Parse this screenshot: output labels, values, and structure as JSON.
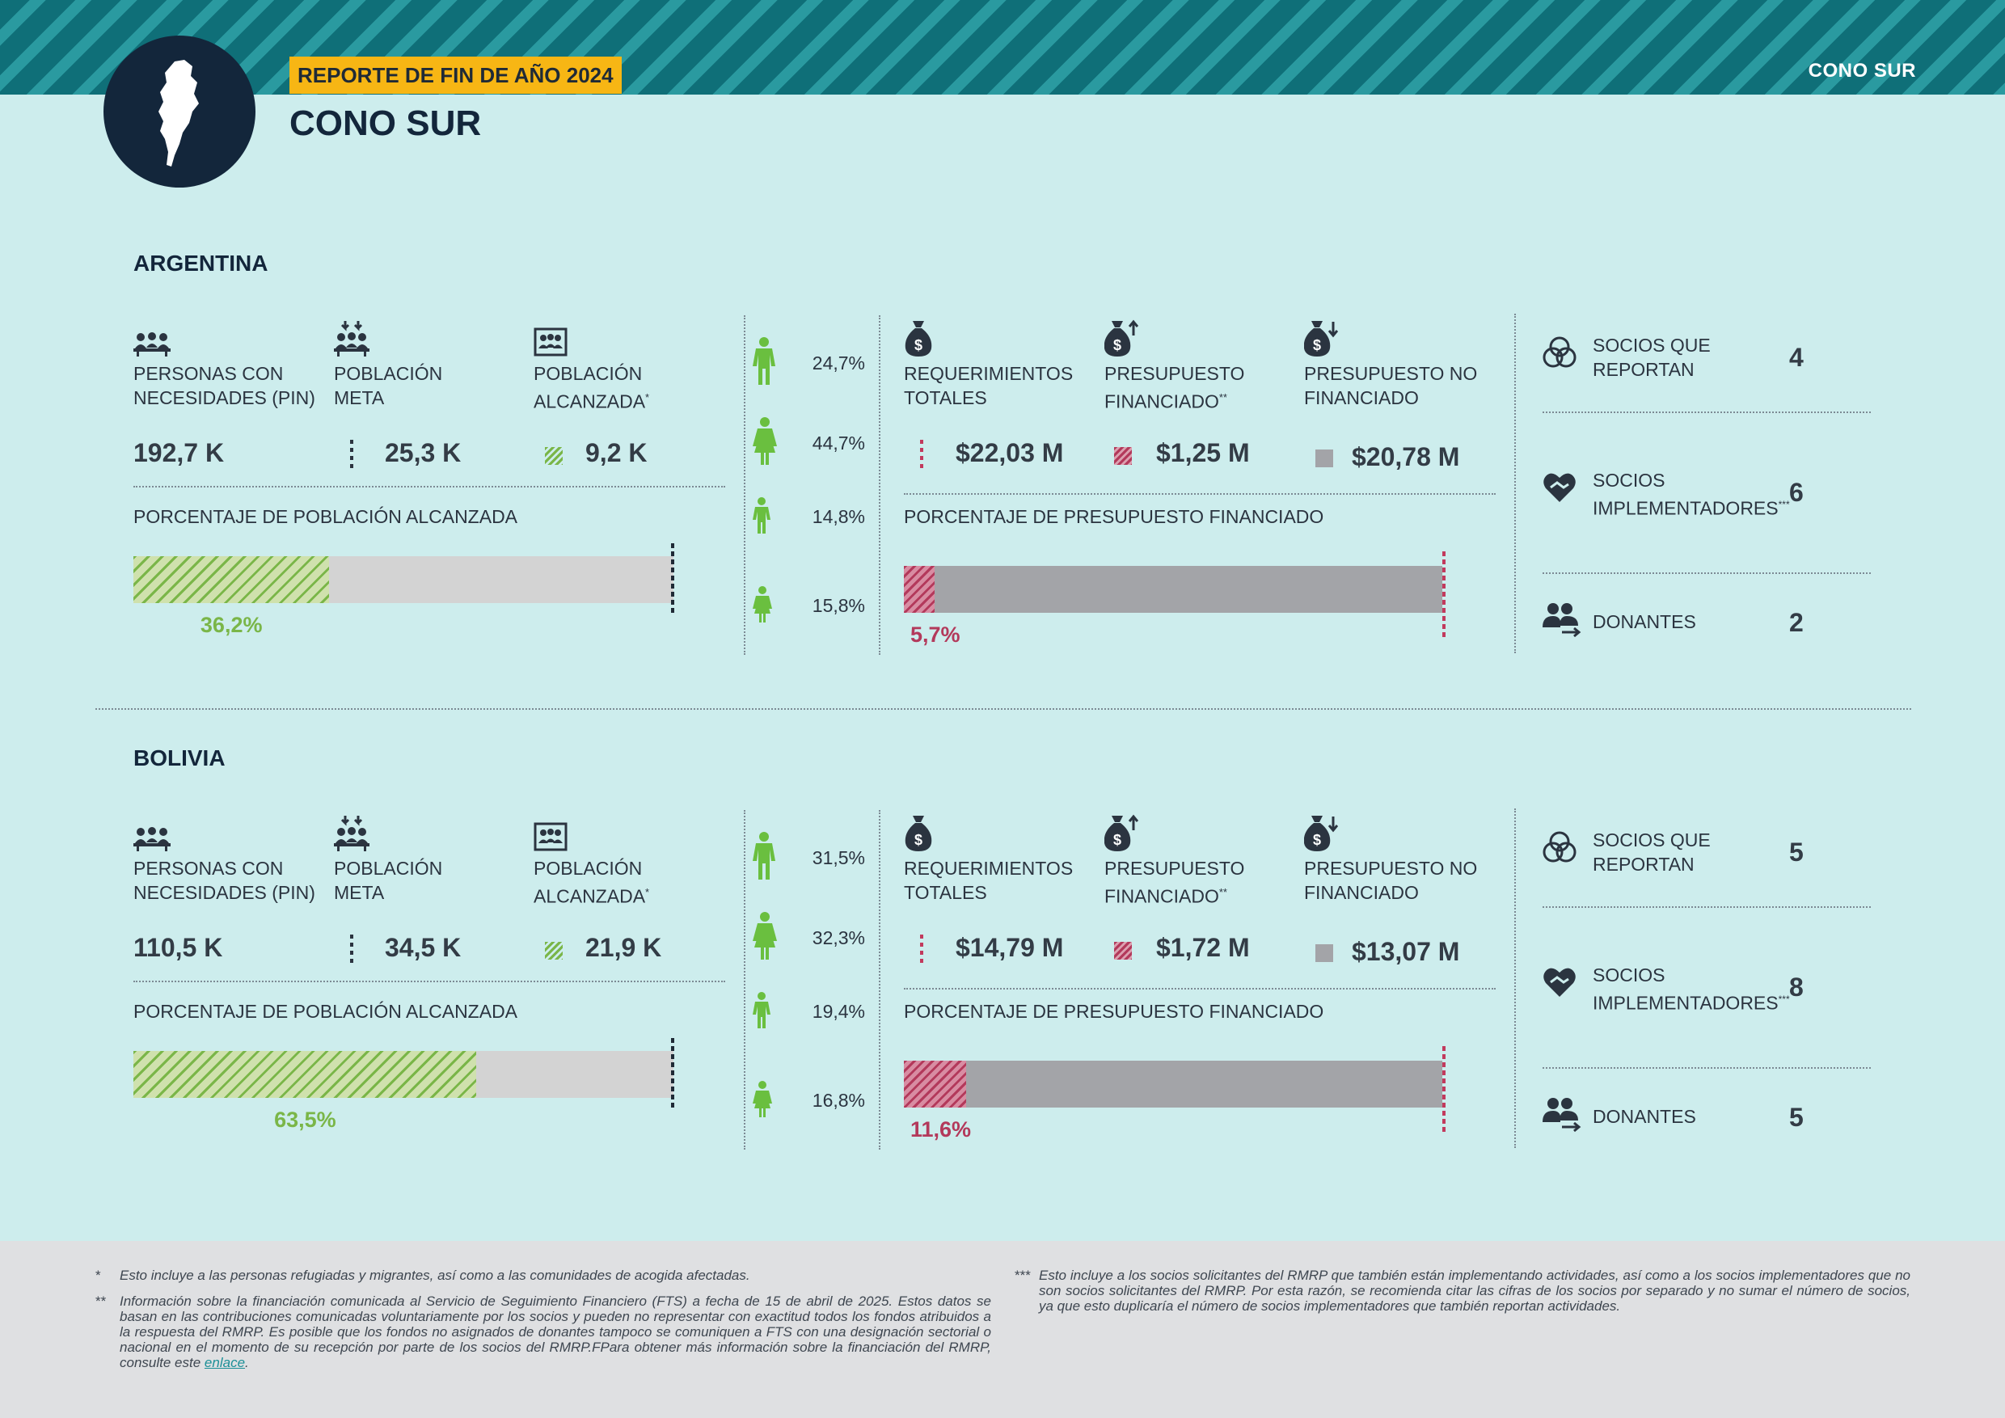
{
  "header": {
    "badge": "REPORTE DE FIN DE AÑO 2024",
    "title": "CONO SUR",
    "banner_region": "CONO SUR"
  },
  "labels": {
    "pin": "PERSONAS CON NECESIDADES (PIN)",
    "pin_l1": "PERSONAS CON",
    "pin_l2": "NECESIDADES (PIN)",
    "meta_l1": "POBLACIÓN",
    "meta_l2": "META",
    "alc_l1": "POBLACIÓN",
    "alc_l2": "ALCANZADA",
    "alc_sup": "*",
    "req_l1": "REQUERIMIENTOS",
    "req_l2": "TOTALES",
    "fin_l1": "PRESUPUESTO",
    "fin_l2": "FINANCIADO",
    "fin_sup": "**",
    "nofin_l1": "PRESUPUESTO NO",
    "nofin_l2": "FINANCIADO",
    "pop_pct_title": "PORCENTAJE DE POBLACIÓN ALCANZADA",
    "budget_pct_title": "PORCENTAJE DE PRESUPUESTO FINANCIADO",
    "socios_rep_l1": "SOCIOS QUE",
    "socios_rep_l2": "REPORTAN",
    "socios_imp_l1": "SOCIOS",
    "socios_imp_l2": "IMPLEMENTADORES",
    "socios_imp_sup": "***",
    "donantes": "DONANTES"
  },
  "countries": [
    {
      "name": "ARGENTINA",
      "pin": "192,7 K",
      "meta": "25,3 K",
      "alcanzada": "9,2 K",
      "pop_reached_pct": 36.2,
      "pop_reached_label": "36,2%",
      "demographics": [
        "24,7%",
        "44,7%",
        "14,8%",
        "15,8%"
      ],
      "requerimientos": "$22,03 M",
      "financiado": "$1,25 M",
      "no_financiado": "$20,78 M",
      "budget_pct": 5.7,
      "budget_pct_label": "5,7%",
      "socios_reportan": "4",
      "socios_implementadores": "6",
      "donantes": "2"
    },
    {
      "name": "BOLIVIA",
      "pin": "110,5 K",
      "meta": "34,5 K",
      "alcanzada": "21,9 K",
      "pop_reached_pct": 63.5,
      "pop_reached_label": "63,5%",
      "demographics": [
        "31,5%",
        "32,3%",
        "19,4%",
        "16,8%"
      ],
      "requerimientos": "$14,79 M",
      "financiado": "$1,72 M",
      "no_financiado": "$13,07 M",
      "budget_pct": 11.6,
      "budget_pct_label": "11,6%",
      "socios_reportan": "5",
      "socios_implementadores": "8",
      "donantes": "5"
    }
  ],
  "footnotes": {
    "f1_mark": "*",
    "f1": "Esto incluye a las personas refugiadas y migrantes, así como a las comunidades de acogida afectadas.",
    "f2_mark": "**",
    "f2": "Información sobre la financiación comunicada al Servicio de Seguimiento Financiero (FTS) a fecha de 15 de abril de 2025. Estos datos se basan en las contribuciones comunicadas voluntariamente por los socios y pueden no representar con exactitud todos los fondos atribuidos a la respuesta del RMRP. Es posible que los fondos no asignados de donantes tampoco se comuniquen a FTS con una designación sectorial o nacional en el momento de su recepción por parte de los socios del RMRP.FPara obtener más información sobre la financiación del RMRP, consulte este",
    "f2_link": "enlace",
    "f3_mark": "***",
    "f3": "Esto incluye a los socios solicitantes del RMRP que también están implementando actividades, así como a los socios implementadores que no son socios solicitantes del RMRP. Por esta razón, se recomienda citar las cifras de los socios por separado y no sumar el número de socios, ya que esto duplicaría el número de socios implementadores que también reportan actividades."
  },
  "colors": {
    "banner_dark": "#0f6f78",
    "badge": "#f7b614",
    "reached_green": "#7ab648",
    "funded_red": "#b3395b",
    "unfunded_gray": "#a3a4a8",
    "background": "#cdeded"
  },
  "icons": [
    "south-america-map-icon",
    "people-group-icon",
    "people-target-icon",
    "people-board-icon",
    "man-icon",
    "woman-icon",
    "boy-icon",
    "girl-icon",
    "money-bag-icon",
    "money-bag-up-icon",
    "money-bag-down-icon",
    "circles-overlap-icon",
    "heart-handshake-icon",
    "donor-people-icon"
  ]
}
